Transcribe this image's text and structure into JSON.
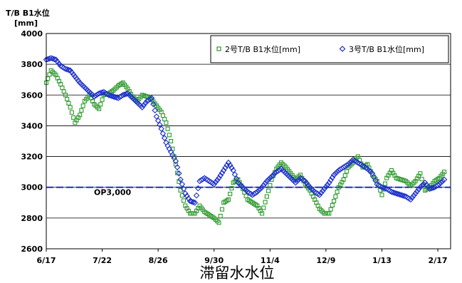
{
  "chart_data": {
    "type": "scatter",
    "title": "",
    "ylabel_line1": "T/B B1水位",
    "ylabel_line2": "[mm]",
    "caption": "滞留水水位",
    "ylim": [
      2600,
      4000
    ],
    "yticks": [
      2600,
      2800,
      3000,
      3200,
      3400,
      3600,
      3800,
      4000
    ],
    "xlim": [
      "2011-06-17",
      "2012-02-25"
    ],
    "x_tick_labels": [
      "6/17",
      "7/22",
      "8/26",
      "9/30",
      "11/4",
      "12/9",
      "1/13",
      "2/17"
    ],
    "x_tick_dates": [
      "2011-06-17",
      "2011-07-22",
      "2011-08-26",
      "2011-09-30",
      "2011-11-04",
      "2011-12-09",
      "2012-01-13",
      "2012-02-17"
    ],
    "grid": true,
    "legend_position": "top-right",
    "reference_line": {
      "value": 3000,
      "label": "OP3,000",
      "color": "#1a2ecc"
    },
    "series": [
      {
        "name": "2号T/B B1水位[mm]",
        "marker": "square",
        "color": "#2e9a2e",
        "points": [
          [
            "2011-06-17",
            3680
          ],
          [
            "2011-06-20",
            3760
          ],
          [
            "2011-06-23",
            3730
          ],
          [
            "2011-06-26",
            3670
          ],
          [
            "2011-06-29",
            3600
          ],
          [
            "2011-07-02",
            3520
          ],
          [
            "2011-07-05",
            3420
          ],
          [
            "2011-07-08",
            3470
          ],
          [
            "2011-07-11",
            3560
          ],
          [
            "2011-07-14",
            3600
          ],
          [
            "2011-07-17",
            3540
          ],
          [
            "2011-07-20",
            3510
          ],
          [
            "2011-07-23",
            3600
          ],
          [
            "2011-07-26",
            3610
          ],
          [
            "2011-07-29",
            3630
          ],
          [
            "2011-08-01",
            3660
          ],
          [
            "2011-08-04",
            3680
          ],
          [
            "2011-08-07",
            3640
          ],
          [
            "2011-08-10",
            3590
          ],
          [
            "2011-08-13",
            3560
          ],
          [
            "2011-08-16",
            3600
          ],
          [
            "2011-08-19",
            3590
          ],
          [
            "2011-08-22",
            3570
          ],
          [
            "2011-08-25",
            3530
          ],
          [
            "2011-08-28",
            3490
          ],
          [
            "2011-08-31",
            3420
          ],
          [
            "2011-09-03",
            3300
          ],
          [
            "2011-09-06",
            3150
          ],
          [
            "2011-09-09",
            2980
          ],
          [
            "2011-09-12",
            2880
          ],
          [
            "2011-09-15",
            2830
          ],
          [
            "2011-09-18",
            2830
          ],
          [
            "2011-09-21",
            2880
          ],
          [
            "2011-09-24",
            2840
          ],
          [
            "2011-09-27",
            2820
          ],
          [
            "2011-09-30",
            2800
          ],
          [
            "2011-10-03",
            2770
          ],
          [
            "2011-10-06",
            2900
          ],
          [
            "2011-10-09",
            2920
          ],
          [
            "2011-10-12",
            3030
          ],
          [
            "2011-10-15",
            3050
          ],
          [
            "2011-10-18",
            2990
          ],
          [
            "2011-10-21",
            2920
          ],
          [
            "2011-10-24",
            2900
          ],
          [
            "2011-10-27",
            2880
          ],
          [
            "2011-10-30",
            2830
          ],
          [
            "2011-11-02",
            2940
          ],
          [
            "2011-11-05",
            3050
          ],
          [
            "2011-11-08",
            3120
          ],
          [
            "2011-11-11",
            3160
          ],
          [
            "2011-11-14",
            3130
          ],
          [
            "2011-11-17",
            3090
          ],
          [
            "2011-11-20",
            3050
          ],
          [
            "2011-11-23",
            3080
          ],
          [
            "2011-11-26",
            3020
          ],
          [
            "2011-11-29",
            2980
          ],
          [
            "2011-12-02",
            2920
          ],
          [
            "2011-12-05",
            2860
          ],
          [
            "2011-12-08",
            2830
          ],
          [
            "2011-12-11",
            2830
          ],
          [
            "2011-12-14",
            2910
          ],
          [
            "2011-12-17",
            3000
          ],
          [
            "2011-12-20",
            3050
          ],
          [
            "2011-12-23",
            3130
          ],
          [
            "2011-12-26",
            3160
          ],
          [
            "2011-12-29",
            3200
          ],
          [
            "2012-01-01",
            3130
          ],
          [
            "2012-01-04",
            3150
          ],
          [
            "2012-01-07",
            3080
          ],
          [
            "2012-01-10",
            3040
          ],
          [
            "2012-01-13",
            2950
          ],
          [
            "2012-01-16",
            3060
          ],
          [
            "2012-01-19",
            3110
          ],
          [
            "2012-01-22",
            3060
          ],
          [
            "2012-01-25",
            3050
          ],
          [
            "2012-01-28",
            3040
          ],
          [
            "2012-01-31",
            3010
          ],
          [
            "2012-02-03",
            3040
          ],
          [
            "2012-02-06",
            3090
          ],
          [
            "2012-02-09",
            2980
          ],
          [
            "2012-02-12",
            3000
          ],
          [
            "2012-02-15",
            3040
          ],
          [
            "2012-02-18",
            3060
          ],
          [
            "2012-02-21",
            3100
          ]
        ]
      },
      {
        "name": "3号T/B B1水位[mm]",
        "marker": "diamond",
        "color": "#1a2ecc",
        "points": [
          [
            "2011-06-17",
            3830
          ],
          [
            "2011-06-20",
            3840
          ],
          [
            "2011-06-23",
            3830
          ],
          [
            "2011-06-26",
            3790
          ],
          [
            "2011-06-29",
            3770
          ],
          [
            "2011-07-02",
            3760
          ],
          [
            "2011-07-05",
            3720
          ],
          [
            "2011-07-08",
            3680
          ],
          [
            "2011-07-11",
            3650
          ],
          [
            "2011-07-14",
            3620
          ],
          [
            "2011-07-17",
            3590
          ],
          [
            "2011-07-20",
            3610
          ],
          [
            "2011-07-23",
            3620
          ],
          [
            "2011-07-26",
            3600
          ],
          [
            "2011-07-29",
            3590
          ],
          [
            "2011-08-01",
            3580
          ],
          [
            "2011-08-04",
            3600
          ],
          [
            "2011-08-07",
            3610
          ],
          [
            "2011-08-10",
            3580
          ],
          [
            "2011-08-13",
            3550
          ],
          [
            "2011-08-16",
            3520
          ],
          [
            "2011-08-19",
            3560
          ],
          [
            "2011-08-22",
            3580
          ],
          [
            "2011-08-25",
            3460
          ],
          [
            "2011-08-28",
            3380
          ],
          [
            "2011-08-31",
            3290
          ],
          [
            "2011-09-03",
            3230
          ],
          [
            "2011-09-06",
            3170
          ],
          [
            "2011-09-09",
            3050
          ],
          [
            "2011-09-12",
            2960
          ],
          [
            "2011-09-15",
            2910
          ],
          [
            "2011-09-18",
            2900
          ],
          [
            "2011-09-21",
            3040
          ],
          [
            "2011-09-24",
            3060
          ],
          [
            "2011-09-27",
            3040
          ],
          [
            "2011-09-30",
            3020
          ],
          [
            "2011-10-03",
            3060
          ],
          [
            "2011-10-06",
            3110
          ],
          [
            "2011-10-09",
            3160
          ],
          [
            "2011-10-12",
            3110
          ],
          [
            "2011-10-15",
            3030
          ],
          [
            "2011-10-18",
            3000
          ],
          [
            "2011-10-21",
            2970
          ],
          [
            "2011-10-24",
            2950
          ],
          [
            "2011-10-27",
            2970
          ],
          [
            "2011-10-30",
            3000
          ],
          [
            "2011-11-02",
            3040
          ],
          [
            "2011-11-05",
            3070
          ],
          [
            "2011-11-08",
            3100
          ],
          [
            "2011-11-11",
            3120
          ],
          [
            "2011-11-14",
            3090
          ],
          [
            "2011-11-17",
            3060
          ],
          [
            "2011-11-20",
            3030
          ],
          [
            "2011-11-23",
            3060
          ],
          [
            "2011-11-26",
            3040
          ],
          [
            "2011-11-29",
            3000
          ],
          [
            "2011-12-02",
            2970
          ],
          [
            "2011-12-05",
            2950
          ],
          [
            "2011-12-08",
            2990
          ],
          [
            "2011-12-11",
            3030
          ],
          [
            "2011-12-14",
            3080
          ],
          [
            "2011-12-17",
            3110
          ],
          [
            "2011-12-20",
            3130
          ],
          [
            "2011-12-23",
            3150
          ],
          [
            "2011-12-26",
            3180
          ],
          [
            "2011-12-29",
            3160
          ],
          [
            "2012-01-01",
            3140
          ],
          [
            "2012-01-04",
            3120
          ],
          [
            "2012-01-07",
            3090
          ],
          [
            "2012-01-10",
            3020
          ],
          [
            "2012-01-13",
            3000
          ],
          [
            "2012-01-16",
            2990
          ],
          [
            "2012-01-19",
            2970
          ],
          [
            "2012-01-22",
            2960
          ],
          [
            "2012-01-25",
            2950
          ],
          [
            "2012-01-28",
            2940
          ],
          [
            "2012-01-31",
            2920
          ],
          [
            "2012-02-03",
            2960
          ],
          [
            "2012-02-06",
            3000
          ],
          [
            "2012-02-09",
            3030
          ],
          [
            "2012-02-12",
            2990
          ],
          [
            "2012-02-15",
            3000
          ],
          [
            "2012-02-18",
            3020
          ],
          [
            "2012-02-21",
            3050
          ]
        ]
      }
    ]
  }
}
